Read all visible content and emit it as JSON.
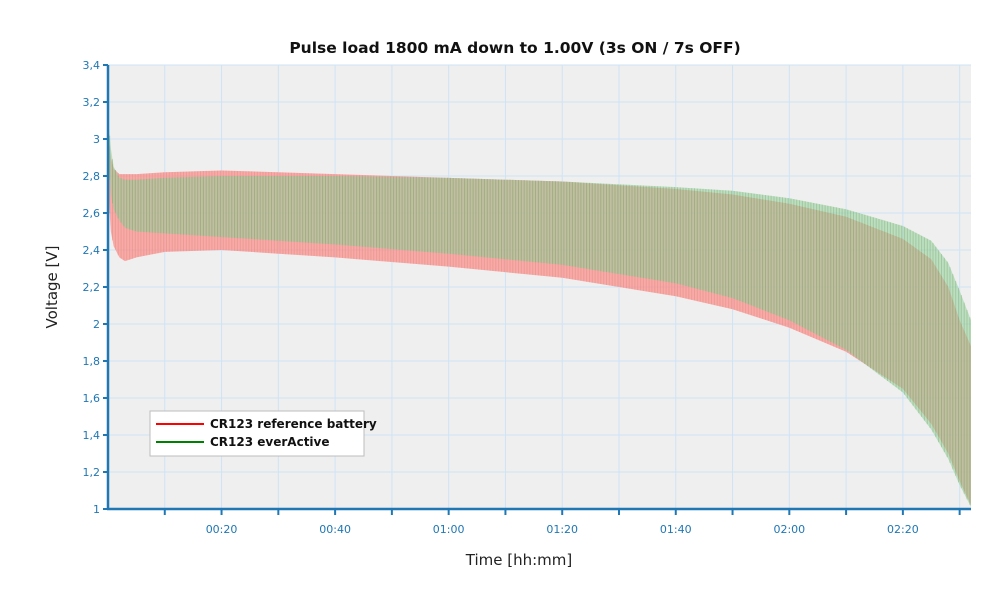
{
  "chart_data": {
    "type": "area",
    "title": "Pulse load 1800 mA down to 1.00V (3s ON / 7s OFF)",
    "xlabel": "Time [hh:mm]",
    "ylabel": "Voltage [V]",
    "xlim_minutes": [
      0,
      152
    ],
    "ylim": [
      1.0,
      3.4
    ],
    "x_ticks": [
      {
        "minutes": 20,
        "label": "00:20"
      },
      {
        "minutes": 40,
        "label": "00:40"
      },
      {
        "minutes": 60,
        "label": "01:00"
      },
      {
        "minutes": 80,
        "label": "01:20"
      },
      {
        "minutes": 100,
        "label": "01:40"
      },
      {
        "minutes": 120,
        "label": "02:00"
      },
      {
        "minutes": 140,
        "label": "02:20"
      }
    ],
    "y_ticks": [
      {
        "value": 1.0,
        "label": "1"
      },
      {
        "value": 1.2,
        "label": "1,2"
      },
      {
        "value": 1.4,
        "label": "1,4"
      },
      {
        "value": 1.6,
        "label": "1,6"
      },
      {
        "value": 1.8,
        "label": "1,8"
      },
      {
        "value": 2.0,
        "label": "2"
      },
      {
        "value": 2.2,
        "label": "2,2"
      },
      {
        "value": 2.4,
        "label": "2,4"
      },
      {
        "value": 2.6,
        "label": "2,6"
      },
      {
        "value": 2.8,
        "label": "2,8"
      },
      {
        "value": 3.0,
        "label": "3"
      },
      {
        "value": 3.2,
        "label": "3,2"
      },
      {
        "value": 3.4,
        "label": "3,4"
      }
    ],
    "grid": true,
    "legend_position": "bottom-left",
    "series": [
      {
        "name": "CR123 reference battery",
        "color": "#ff0000",
        "band_color": "#ff8a8a",
        "x_minutes": [
          0,
          0.5,
          1,
          2,
          3,
          5,
          10,
          20,
          30,
          40,
          60,
          80,
          100,
          110,
          120,
          130,
          140,
          145,
          148,
          150,
          152
        ],
        "upper_v": [
          3.05,
          2.9,
          2.84,
          2.81,
          2.81,
          2.81,
          2.82,
          2.83,
          2.82,
          2.81,
          2.79,
          2.77,
          2.73,
          2.7,
          2.65,
          2.58,
          2.46,
          2.35,
          2.2,
          2.02,
          1.88
        ],
        "lower_v": [
          2.75,
          2.5,
          2.42,
          2.36,
          2.34,
          2.36,
          2.39,
          2.4,
          2.38,
          2.36,
          2.31,
          2.25,
          2.15,
          2.08,
          1.98,
          1.85,
          1.65,
          1.46,
          1.3,
          1.15,
          1.02
        ]
      },
      {
        "name": "CR123 everActive",
        "color": "#008000",
        "band_color": "#8fd19e",
        "x_minutes": [
          0,
          0.5,
          1,
          2,
          3,
          5,
          10,
          20,
          30,
          40,
          60,
          80,
          100,
          110,
          120,
          130,
          140,
          145,
          148,
          150,
          152
        ],
        "upper_v": [
          3.12,
          2.95,
          2.85,
          2.79,
          2.78,
          2.78,
          2.79,
          2.8,
          2.8,
          2.8,
          2.79,
          2.77,
          2.74,
          2.72,
          2.68,
          2.62,
          2.53,
          2.45,
          2.33,
          2.18,
          2.02
        ],
        "lower_v": [
          2.9,
          2.7,
          2.62,
          2.56,
          2.52,
          2.5,
          2.49,
          2.47,
          2.45,
          2.43,
          2.38,
          2.32,
          2.22,
          2.14,
          2.02,
          1.86,
          1.63,
          1.43,
          1.27,
          1.13,
          1.01
        ]
      }
    ]
  }
}
